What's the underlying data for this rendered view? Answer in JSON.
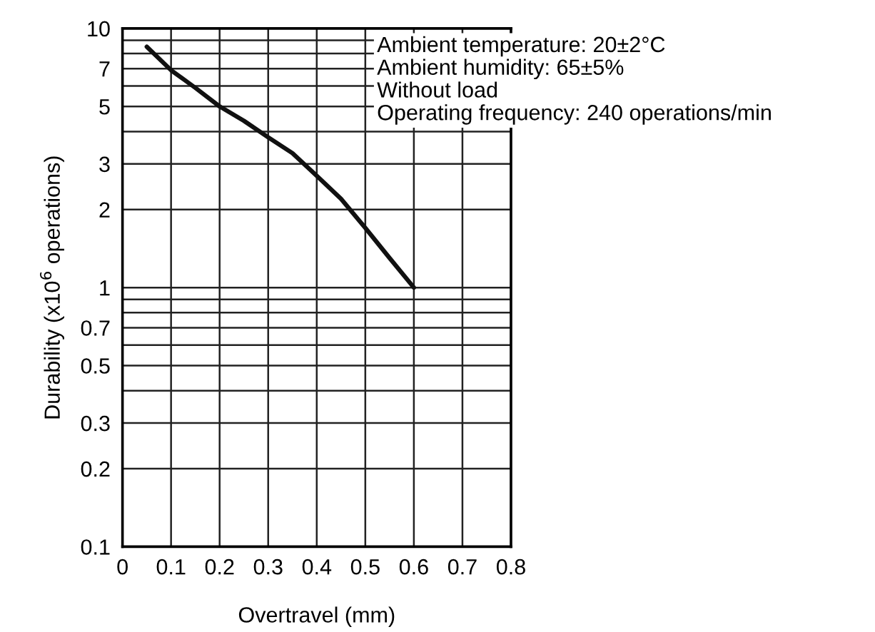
{
  "chart_data": {
    "type": "line",
    "xlabel": "Overtravel (mm)",
    "ylabel": "Durability (x10$^{6}$ operations)",
    "x": [
      0.05,
      0.1,
      0.15,
      0.2,
      0.25,
      0.3,
      0.35,
      0.4,
      0.45,
      0.5,
      0.55,
      0.6
    ],
    "series": [
      {
        "color": "#111111",
        "values": [
          8.5,
          6.9,
          5.9,
          5.0,
          4.4,
          3.8,
          3.3,
          2.7,
          2.2,
          1.7,
          1.3,
          1.0
        ]
      }
    ],
    "log": "y",
    "grid": true,
    "marker": "none",
    "line_style": "solid",
    "xlim": [
      0,
      0.8
    ],
    "xticks": [
      0,
      0.1,
      0.2,
      0.3,
      0.4,
      0.5,
      0.6,
      0.7,
      0.8
    ],
    "ylim": [
      0.1,
      10
    ],
    "yticks": [
      0.1,
      0.2,
      0.3,
      {
        "value": 0.4,
        "label": null
      },
      0.5,
      {
        "value": 0.6,
        "label": null
      },
      0.7,
      {
        "value": 0.8,
        "label": null
      },
      {
        "value": 0.9,
        "label": null
      },
      1,
      2,
      3,
      {
        "value": 4,
        "label": null
      },
      5,
      {
        "value": 6,
        "label": null
      },
      7,
      {
        "value": 8,
        "label": null
      },
      {
        "value": 9,
        "label": null
      },
      10
    ],
    "annotations": [
      "Ambient temperature: 20±2°C",
      "Ambient humidity: 65±5%",
      "Without load",
      "Operating frequency: 240 operations/min"
    ]
  }
}
